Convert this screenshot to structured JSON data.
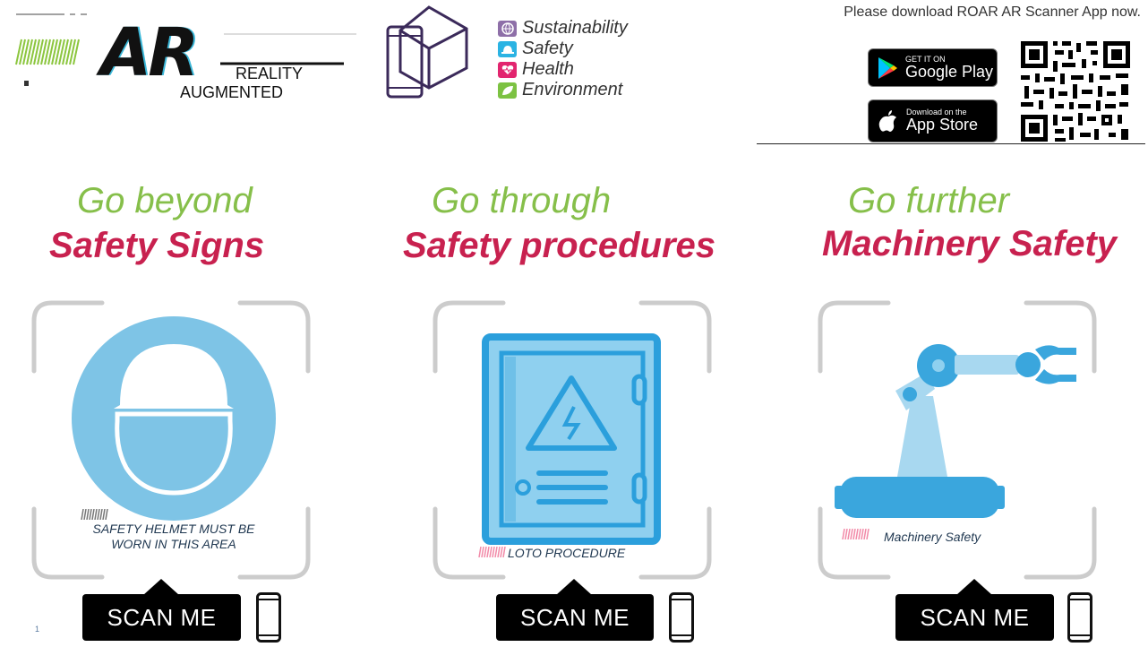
{
  "brand": {
    "ar": "AR",
    "reality": "REALITY",
    "augmented": "AUGMENTED",
    "sshe": [
      "Sustainability",
      "Safety",
      "Health",
      "Environment"
    ]
  },
  "download": {
    "text": "Please download ROAR AR Scanner App now.",
    "google_small": "GET IT ON",
    "google_big": "Google Play",
    "apple_small": "Download on the",
    "apple_big": "App Store"
  },
  "columns": [
    {
      "go": "Go beyond",
      "title": "Safety Signs",
      "caption_line1": "SAFETY HELMET MUST BE",
      "caption_line2": "WORN IN THIS AREA",
      "scan": "SCAN ME"
    },
    {
      "go": "Go through",
      "title": "Safety procedures",
      "caption": "LOTO PROCEDURE",
      "scan": "SCAN ME"
    },
    {
      "go": "Go further",
      "title": "Machinery Safety",
      "caption": "Machinery Safety",
      "scan": "SCAN ME"
    }
  ],
  "slide_number": "1",
  "colors": {
    "green": "#86bf4a",
    "crimson": "#c8214f",
    "light_blue": "#7ec4e6",
    "blue": "#3aa6dd",
    "frame_gray": "#cccccc"
  }
}
